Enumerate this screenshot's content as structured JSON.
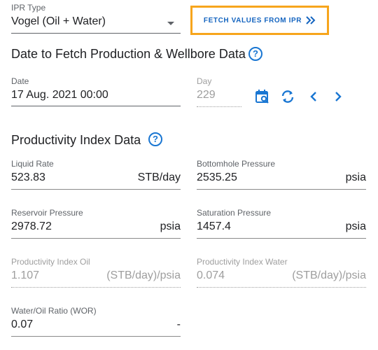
{
  "ipr_type": {
    "label": "IPR Type",
    "value": "Vogel (Oil + Water)"
  },
  "fetch_button": {
    "label": "FETCH VALUES FROM IPR"
  },
  "date_section": {
    "title": "Date to Fetch Production & Wellbore Data",
    "date_label": "Date",
    "date_value": "17 Aug. 2021 00:00",
    "day_label": "Day",
    "day_value": "229"
  },
  "pi_section": {
    "title": "Productivity Index Data",
    "liquid_rate": {
      "label": "Liquid Rate",
      "value": "523.83",
      "unit": "STB/day"
    },
    "bottomhole_pressure": {
      "label": "Bottomhole Pressure",
      "value": "2535.25",
      "unit": "psia"
    },
    "reservoir_pressure": {
      "label": "Reservoir Pressure",
      "value": "2978.72",
      "unit": "psia"
    },
    "saturation_pressure": {
      "label": "Saturation Pressure",
      "value": "1457.4",
      "unit": "psia"
    },
    "pi_oil": {
      "label": "Productivity Index Oil",
      "value": "1.107",
      "unit": "(STB/day)/psia"
    },
    "pi_water": {
      "label": "Productivity Index Water",
      "value": "0.074",
      "unit": "(STB/day)/psia"
    },
    "wor": {
      "label": "Water/Oil Ratio (WOR)",
      "value": "0.07",
      "unit": "-"
    }
  },
  "help_symbol": "?",
  "colors": {
    "accent": "#1976d2",
    "highlight_border": "#f7a51c"
  }
}
